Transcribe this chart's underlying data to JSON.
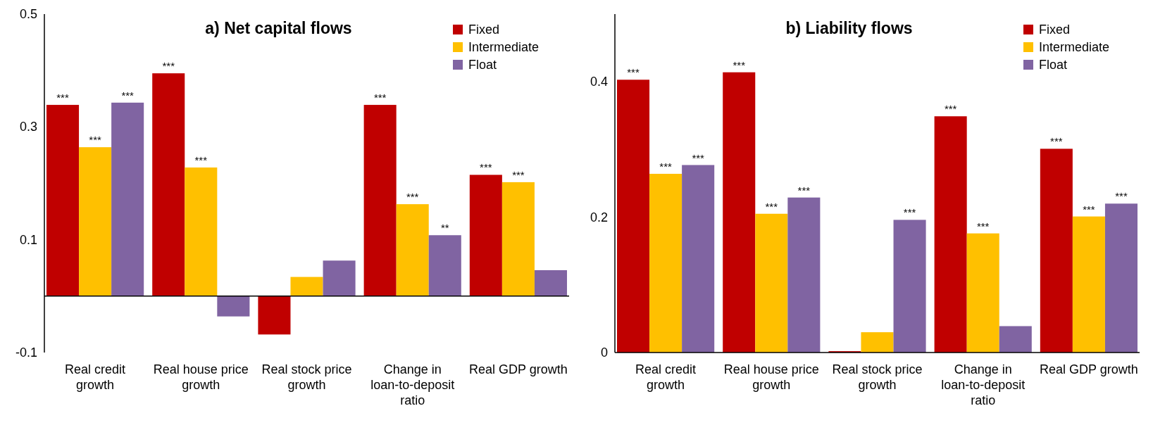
{
  "chart_data": [
    {
      "type": "bar",
      "title": "a) Net capital flows",
      "categories": [
        "Real credit growth",
        "Real house price growth",
        "Real stock price growth",
        "Change in loan-to-deposit ratio",
        "Real GDP growth"
      ],
      "series": [
        {
          "name": "Fixed",
          "color": "#c00000",
          "values": [
            0.339,
            0.395,
            -0.068,
            0.339,
            0.215
          ],
          "value_labels": [
            "***",
            "***",
            null,
            "***",
            "***"
          ]
        },
        {
          "name": "Intermediate",
          "color": "#ffc000",
          "values": [
            0.264,
            0.228,
            0.034,
            0.163,
            0.202
          ],
          "value_labels": [
            "***",
            "***",
            null,
            "***",
            "***"
          ]
        },
        {
          "name": "Float",
          "color": "#8064a2",
          "values": [
            0.343,
            -0.036,
            0.063,
            0.108,
            0.046
          ],
          "value_labels": [
            "***",
            null,
            null,
            "**",
            null
          ]
        }
      ],
      "ylim": [
        -0.1,
        0.5
      ],
      "yticks": [
        -0.1,
        0.1,
        0.3,
        0.5
      ],
      "grid": false,
      "legend": "top right"
    },
    {
      "type": "bar",
      "title": "b) Liability flows",
      "categories": [
        "Real credit growth",
        "Real house price growth",
        "Real stock price growth",
        "Change in loan-to-deposit ratio",
        "Real GDP growth"
      ],
      "series": [
        {
          "name": "Fixed",
          "color": "#c00000",
          "values": [
            0.403,
            0.414,
            0.002,
            0.349,
            0.301
          ],
          "value_labels": [
            "***",
            "***",
            null,
            "***",
            "***"
          ]
        },
        {
          "name": "Intermediate",
          "color": "#ffc000",
          "values": [
            0.264,
            0.205,
            0.03,
            0.176,
            0.201
          ],
          "value_labels": [
            "***",
            "***",
            null,
            "***",
            "***"
          ]
        },
        {
          "name": "Float",
          "color": "#8064a2",
          "values": [
            0.277,
            0.229,
            0.196,
            0.039,
            0.22
          ],
          "value_labels": [
            "***",
            "***",
            "***",
            null,
            "***"
          ]
        }
      ],
      "ylim": [
        0,
        0.5
      ],
      "yticks": [
        0,
        0.2,
        0.4
      ],
      "grid": false,
      "legend": "top right"
    }
  ]
}
